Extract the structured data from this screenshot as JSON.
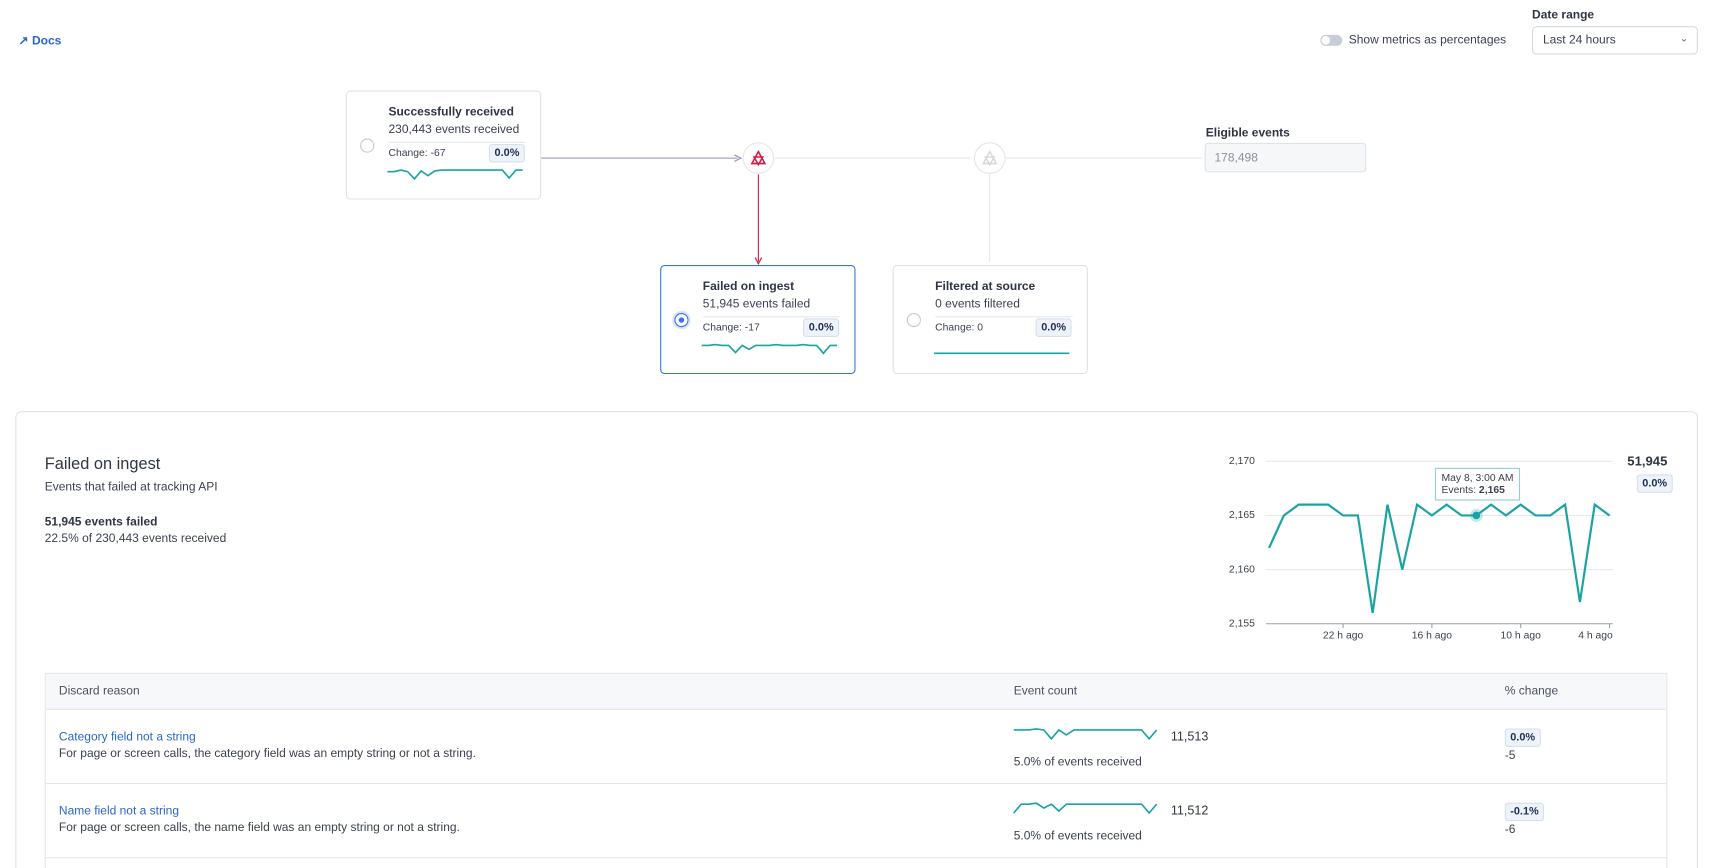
{
  "header": {
    "docs": "Docs",
    "toggle_label": "Show metrics as percentages",
    "date_range_label": "Date range",
    "date_range_value": "Last 24 hours"
  },
  "flow": {
    "received": {
      "title": "Successfully received",
      "subtitle": "230,443 events received",
      "change": "Change: -67",
      "badge": "0.0%",
      "spark": [
        2.1,
        2.1,
        2.3,
        2.1,
        1.2,
        2.2,
        1.6,
        2.2,
        2.3,
        2.3,
        2.3,
        2.3,
        2.3,
        2.3,
        2.3,
        2.3,
        2.3,
        2.3,
        1.3,
        2.3,
        2.3
      ]
    },
    "failed": {
      "title": "Failed on ingest",
      "subtitle": "51,945 events failed",
      "change": "Change: -17",
      "badge": "0.0%",
      "spark": [
        2.2,
        2.2,
        2.3,
        2.2,
        2.2,
        1.3,
        2.2,
        1.7,
        2.2,
        2.2,
        2.2,
        2.3,
        2.2,
        2.2,
        2.2,
        2.3,
        2.2,
        2.2,
        1.2,
        2.2,
        2.2
      ]
    },
    "filtered": {
      "title": "Filtered at source",
      "subtitle": "0 events filtered",
      "change": "Change: 0",
      "badge": "0.0%",
      "spark": [
        0,
        0,
        0,
        0,
        0,
        0,
        0,
        0,
        0,
        0
      ]
    },
    "eligible": {
      "label": "Eligible events",
      "value": "178,498"
    }
  },
  "detail": {
    "title": "Failed on ingest",
    "subtitle": "Events that failed at tracking API",
    "total": "51,945 events failed",
    "share": "22.5% of 230,443 events received",
    "chart_data": {
      "type": "line",
      "color": "#1aa3a3",
      "categories": [
        null,
        null,
        null,
        null,
        null,
        "22 h ago",
        null,
        null,
        null,
        null,
        null,
        "16 h ago",
        null,
        null,
        null,
        null,
        null,
        "10 h ago",
        null,
        null,
        null,
        null,
        null,
        "4 h ago"
      ],
      "values": [
        2162,
        2165,
        2166,
        2166,
        2166,
        2165,
        2165,
        2156,
        2166,
        2160,
        2166,
        2165,
        2166,
        2165,
        2165,
        2166,
        2165,
        2166,
        2165,
        2165,
        2166,
        2157,
        2166,
        2165
      ],
      "ylim": [
        2155,
        2170
      ],
      "yticks": [
        {
          "value": 2155,
          "label": "2,155"
        },
        {
          "value": 2160,
          "label": "2,160"
        },
        {
          "value": 2165,
          "label": "2,165"
        },
        {
          "value": 2170,
          "label": "2,170"
        }
      ],
      "grid": true,
      "total": "51,945",
      "badge": "0.0%",
      "tooltip": {
        "title": "May 8, 3:00 AM",
        "label": "Events:",
        "value": "2,165"
      }
    }
  },
  "table": {
    "headers": [
      "Discard reason",
      "Event count",
      "% change"
    ],
    "rows": [
      {
        "name": "Category field not a string",
        "description": "For page or screen calls, the category field was an empty string or not a string.",
        "spark": [
          2.2,
          2.2,
          2.2,
          2.3,
          2.2,
          1.3,
          2.2,
          1.7,
          2.2,
          2.2,
          2.2,
          2.2,
          2.2,
          2.2,
          2.2,
          2.2,
          2.2,
          2.2,
          1.3,
          2.2
        ],
        "count": "11,513",
        "share": "5.0% of events received",
        "badge": "0.0%",
        "change": "-5"
      },
      {
        "name": "Name field not a string",
        "description": "For page or screen calls, the name field was an empty string or not a string.",
        "spark": [
          1.3,
          2.2,
          2.2,
          2.3,
          1.8,
          2.2,
          1.5,
          2.2,
          2.2,
          2.2,
          2.2,
          2.2,
          2.2,
          2.2,
          2.2,
          2.2,
          2.2,
          2.2,
          1.3,
          2.2
        ],
        "count": "11,512",
        "share": "5.0% of events received",
        "badge": "-0.1%",
        "change": "-6"
      }
    ]
  }
}
